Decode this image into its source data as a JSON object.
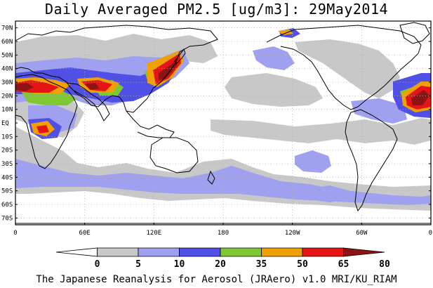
{
  "title": "Daily Averaged PM2.5 [ug/m3]: 29May2014",
  "credit": "The Japanese Reanalysis for Aerosol (JRAero) v1.0 MRI/KU_RIAM",
  "map": {
    "projection": "equirectangular",
    "lon_range": [
      0,
      360
    ],
    "lat_range": [
      -75,
      75
    ],
    "grid": true,
    "lat_ticks": [
      {
        "lat": 70,
        "label": "70N"
      },
      {
        "lat": 60,
        "label": "60N"
      },
      {
        "lat": 50,
        "label": "50N"
      },
      {
        "lat": 40,
        "label": "40N"
      },
      {
        "lat": 30,
        "label": "30N"
      },
      {
        "lat": 20,
        "label": "20N"
      },
      {
        "lat": 10,
        "label": "10N"
      },
      {
        "lat": 0,
        "label": "EQ"
      },
      {
        "lat": -10,
        "label": "10S"
      },
      {
        "lat": -20,
        "label": "20S"
      },
      {
        "lat": -30,
        "label": "30S"
      },
      {
        "lat": -40,
        "label": "40S"
      },
      {
        "lat": -50,
        "label": "50S"
      },
      {
        "lat": -60,
        "label": "60S"
      },
      {
        "lat": -70,
        "label": "70S"
      }
    ],
    "lon_ticks": [
      {
        "lon": 0,
        "label": "0"
      },
      {
        "lon": 60,
        "label": "60E"
      },
      {
        "lon": 120,
        "label": "120E"
      },
      {
        "lon": 180,
        "label": "180"
      },
      {
        "lon": 240,
        "label": "120W"
      },
      {
        "lon": 300,
        "label": "60W"
      },
      {
        "lon": 360,
        "label": "0"
      }
    ]
  },
  "colorbar": {
    "unit": "ug/m3",
    "levels": [
      "0",
      "5",
      "10",
      "20",
      "35",
      "50",
      "65",
      "80"
    ],
    "colors": [
      "#ffffff",
      "#c8c8c8",
      "#a0a0f0",
      "#5050e6",
      "#80c832",
      "#f0a000",
      "#e61414",
      "#8c1414"
    ]
  },
  "colors": {
    "gray": "#c8c8c8",
    "lightblue": "#a0a0f0",
    "blue": "#5050e6",
    "green": "#80c832",
    "orange": "#f0a000",
    "red": "#e61414",
    "darkred": "#8c1414",
    "coast": "#000000"
  }
}
